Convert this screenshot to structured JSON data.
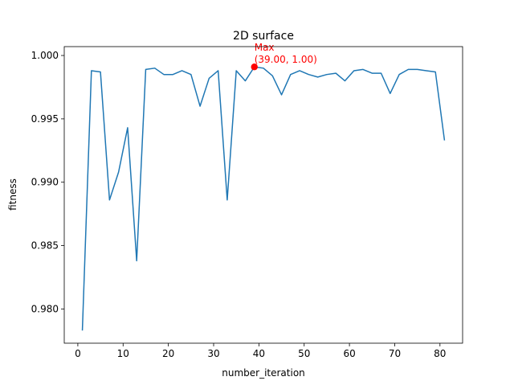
{
  "chart_data": {
    "type": "line",
    "title": "2D surface",
    "xlabel": "number_iteration",
    "ylabel": "fitness",
    "xlim": [
      -3,
      85
    ],
    "ylim": [
      0.9773,
      1.0007
    ],
    "xticks": [
      0,
      10,
      20,
      30,
      40,
      50,
      60,
      70,
      80
    ],
    "yticks": [
      0.98,
      0.985,
      0.99,
      0.995,
      1.0
    ],
    "ytick_labels": [
      "0.980",
      "0.985",
      "0.990",
      "0.995",
      "1.000"
    ],
    "grid": false,
    "line_color": "#1f77b4",
    "series": [
      {
        "x": [
          1,
          3,
          5,
          7,
          9,
          11,
          13,
          15,
          17,
          19,
          21,
          23,
          25,
          27,
          29,
          31,
          33,
          35,
          37,
          39,
          41,
          43,
          45,
          47,
          49,
          51,
          53,
          55,
          57,
          59,
          61,
          63,
          65,
          67,
          69,
          71,
          73,
          75,
          77,
          79,
          81
        ],
        "y": [
          0.9783,
          0.9988,
          0.9987,
          0.9886,
          0.9908,
          0.9943,
          0.9838,
          0.9989,
          0.999,
          0.9985,
          0.9985,
          0.9988,
          0.9985,
          0.996,
          0.9982,
          0.9988,
          0.9886,
          0.9988,
          0.998,
          0.9991,
          0.999,
          0.9984,
          0.9969,
          0.9985,
          0.9988,
          0.9985,
          0.9983,
          0.9985,
          0.9986,
          0.998,
          0.9988,
          0.9989,
          0.9986,
          0.9986,
          0.997,
          0.9985,
          0.9989,
          0.9989,
          0.9988,
          0.9987,
          0.9933
        ]
      }
    ],
    "annotation": {
      "label_line1": "Max",
      "label_line2": "(39.00, 1.00)",
      "x": 39,
      "y": 0.9991,
      "color": "#ff0000"
    }
  }
}
